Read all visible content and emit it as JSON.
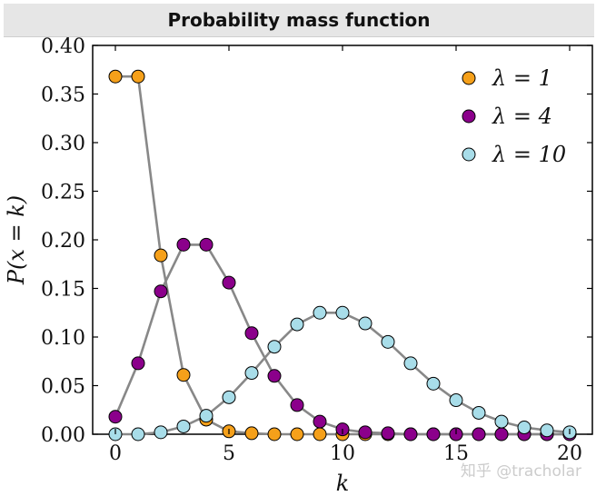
{
  "window": {
    "title": "Probability mass function"
  },
  "watermark": "知乎 @tracholar",
  "chart_data": {
    "type": "scatter",
    "title": "Probability mass function",
    "xlabel": "k",
    "ylabel": "P(x = k)",
    "xlim": [
      -1,
      21
    ],
    "ylim": [
      0,
      0.4
    ],
    "xticks": [
      0,
      5,
      10,
      15,
      20
    ],
    "yticks": [
      0.0,
      0.05,
      0.1,
      0.15,
      0.2,
      0.25,
      0.3,
      0.35,
      0.4
    ],
    "xtick_labels": [
      "0",
      "5",
      "10",
      "15",
      "20"
    ],
    "ytick_labels": [
      "0.00",
      "0.05",
      "0.10",
      "0.15",
      "0.20",
      "0.25",
      "0.30",
      "0.35",
      "0.40"
    ],
    "grid": false,
    "legend_position": "top-right",
    "line_color": "#888888",
    "series": [
      {
        "name": "λ = 1",
        "color": "#f5a01a",
        "x": [
          0,
          1,
          2,
          3,
          4,
          5,
          6,
          7,
          8,
          9,
          10,
          11,
          12,
          13,
          14,
          15,
          16,
          17,
          18,
          19,
          20
        ],
        "y": [
          0.368,
          0.368,
          0.184,
          0.061,
          0.015,
          0.003,
          0.001,
          0,
          0,
          0,
          0,
          0,
          0,
          0,
          0,
          0,
          0,
          0,
          0,
          0,
          0
        ]
      },
      {
        "name": "λ = 4",
        "color": "#8b008b",
        "x": [
          0,
          1,
          2,
          3,
          4,
          5,
          6,
          7,
          8,
          9,
          10,
          11,
          12,
          13,
          14,
          15,
          16,
          17,
          18,
          19,
          20
        ],
        "y": [
          0.018,
          0.073,
          0.147,
          0.195,
          0.195,
          0.156,
          0.104,
          0.06,
          0.03,
          0.013,
          0.005,
          0.002,
          0.001,
          0,
          0,
          0,
          0,
          0,
          0,
          0,
          0
        ]
      },
      {
        "name": "λ = 10",
        "color": "#a8dde9",
        "x": [
          0,
          1,
          2,
          3,
          4,
          5,
          6,
          7,
          8,
          9,
          10,
          11,
          12,
          13,
          14,
          15,
          16,
          17,
          18,
          19,
          20
        ],
        "y": [
          0,
          0,
          0.002,
          0.008,
          0.019,
          0.038,
          0.063,
          0.09,
          0.113,
          0.125,
          0.125,
          0.114,
          0.095,
          0.073,
          0.052,
          0.035,
          0.022,
          0.013,
          0.007,
          0.004,
          0.002
        ]
      }
    ]
  }
}
